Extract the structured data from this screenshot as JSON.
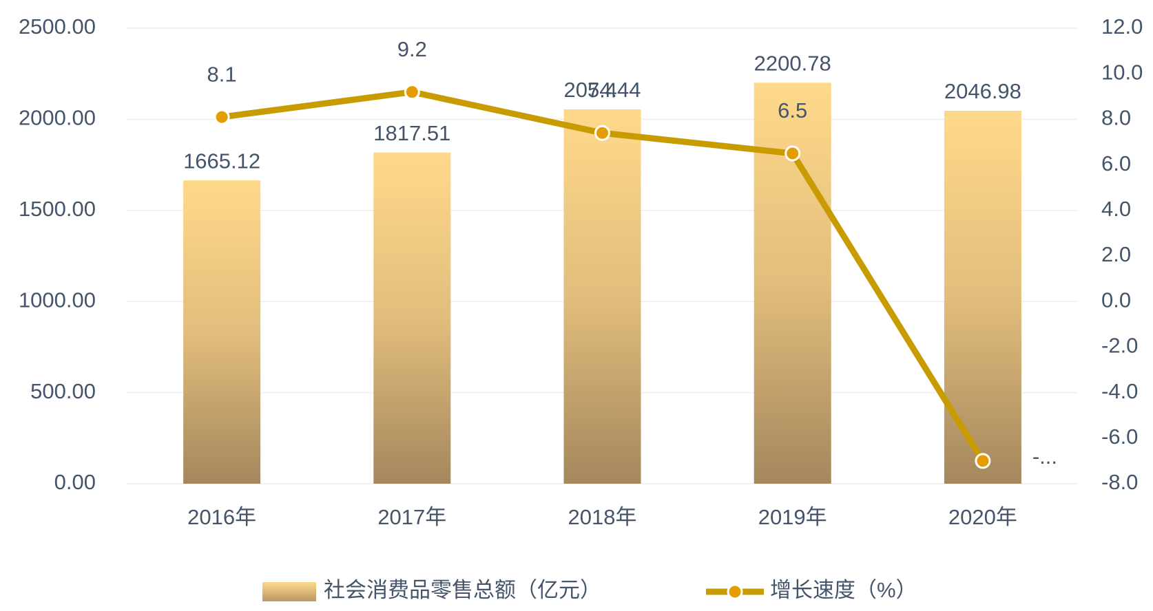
{
  "chart_data": {
    "type": "bar-line",
    "categories": [
      "2016年",
      "2017年",
      "2018年",
      "2019年",
      "2020年"
    ],
    "series": [
      {
        "name": "社会消费品零售总额（亿元）",
        "type": "bar",
        "color": "#f5d18a",
        "values": [
          1665.12,
          1817.51,
          2054.44,
          2200.78,
          2046.98
        ]
      },
      {
        "name": "增长速度（%）",
        "type": "line",
        "axis": "y2",
        "color": "#c89b00",
        "values": [
          8.1,
          9.2,
          7.4,
          6.5,
          -7.0
        ],
        "value_labels": [
          "8.1",
          "9.2",
          "7.4",
          "6.5",
          "-..."
        ]
      }
    ],
    "ylim": [
      0,
      2500
    ],
    "yticks": [
      {
        "value": 0,
        "label": "0.00"
      },
      {
        "value": 500,
        "label": "500.00"
      },
      {
        "value": 1000,
        "label": "1000.00"
      },
      {
        "value": 1500,
        "label": "1500.00"
      },
      {
        "value": 2000,
        "label": "2000.00"
      },
      {
        "value": 2500,
        "label": "2500.00"
      }
    ],
    "y2lim": [
      -8,
      12
    ],
    "y2ticks": [
      {
        "value": -8,
        "label": "-8.0"
      },
      {
        "value": -6,
        "label": "-6.0"
      },
      {
        "value": -4,
        "label": "-4.0"
      },
      {
        "value": -2,
        "label": "-2.0"
      },
      {
        "value": 0,
        "label": "0.0"
      },
      {
        "value": 2,
        "label": "2.0"
      },
      {
        "value": 4,
        "label": "4.0"
      },
      {
        "value": 6,
        "label": "6.0"
      },
      {
        "value": 8,
        "label": "8.0"
      },
      {
        "value": 10,
        "label": "10.0"
      },
      {
        "value": 12,
        "label": "12.0"
      }
    ],
    "grid": true,
    "legend": "bottom"
  }
}
